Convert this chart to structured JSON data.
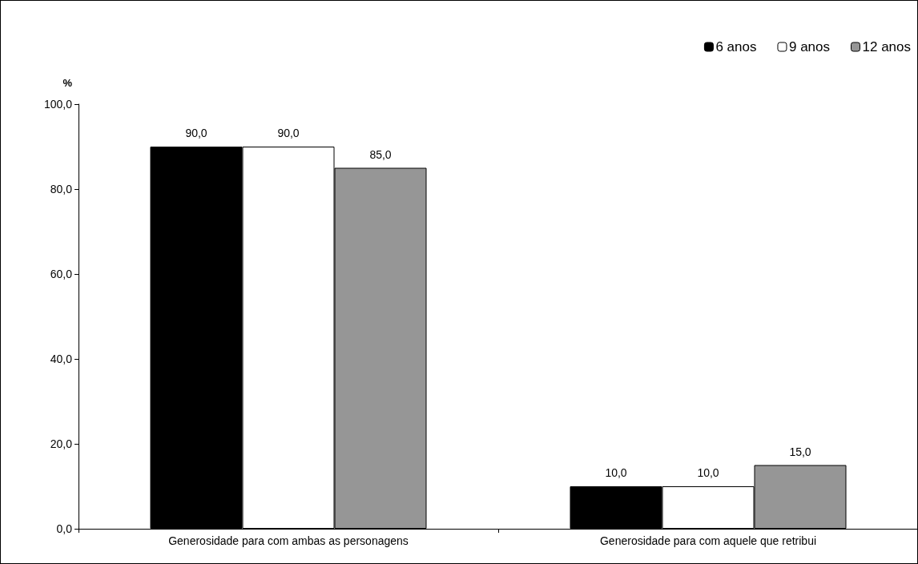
{
  "chart_data": {
    "type": "bar",
    "ylabel": "%",
    "categories": [
      "Generosidade para com ambas as personagens",
      "Generosidade para com aquele que retribui"
    ],
    "series": [
      {
        "name": "6 anos",
        "color": "#000000",
        "values": [
          90,
          10
        ],
        "value_labels": [
          "90,0",
          "10,0"
        ]
      },
      {
        "name": "9 anos",
        "color": "#ffffff",
        "values": [
          90,
          10
        ],
        "value_labels": [
          "90,0",
          "10,0"
        ]
      },
      {
        "name": "12 anos",
        "color": "#969696",
        "values": [
          85,
          15
        ],
        "value_labels": [
          "85,0",
          "15,0"
        ]
      }
    ],
    "ylim": [
      0,
      100
    ],
    "yticks": [
      {
        "value": 0,
        "label": "0,0"
      },
      {
        "value": 20,
        "label": "20,0"
      },
      {
        "value": 40,
        "label": "40,0"
      },
      {
        "value": 60,
        "label": "60,0"
      },
      {
        "value": 80,
        "label": "80,0"
      },
      {
        "value": 100,
        "label": "100,0"
      }
    ],
    "grid": false,
    "legend": "top right"
  }
}
